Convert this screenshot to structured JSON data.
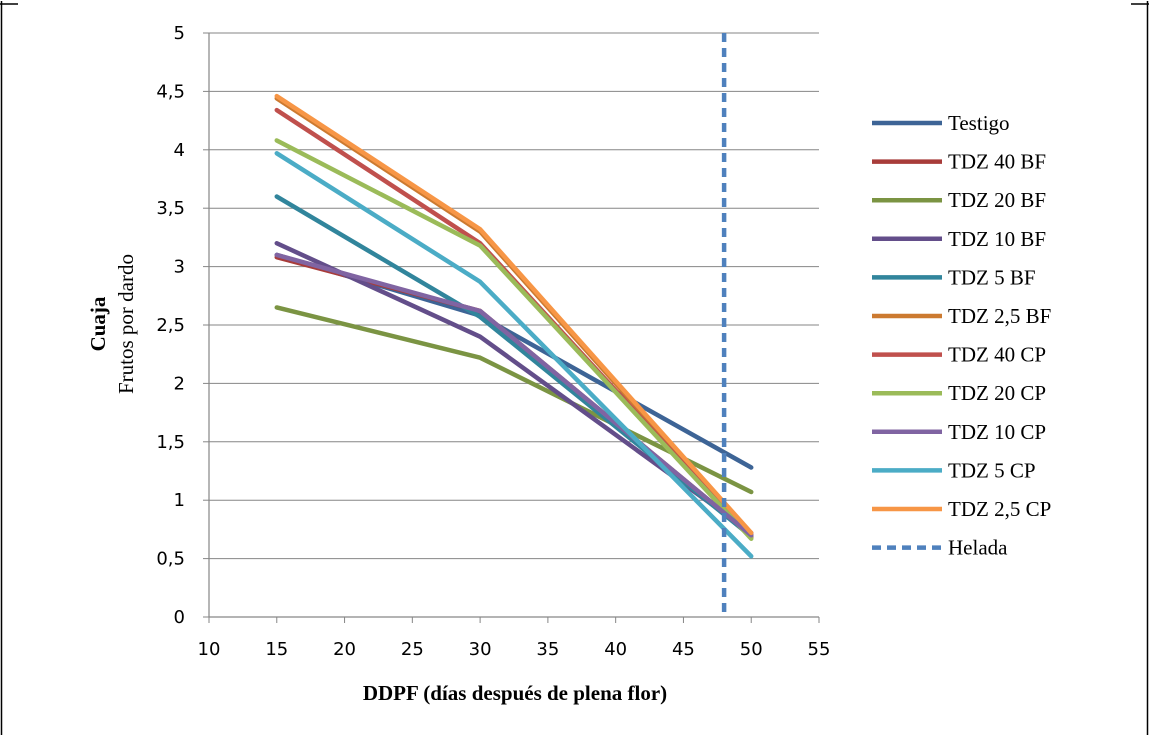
{
  "chart_data": {
    "type": "line",
    "title": "",
    "xlabel": "DDPF (días después de plena flor)",
    "ylabel_bold": "Cuaja",
    "ylabel": "Frutos por dardo",
    "xlim": [
      10,
      55
    ],
    "ylim": [
      0,
      5
    ],
    "x_ticks": [
      "10",
      "15",
      "20",
      "25",
      "30",
      "35",
      "40",
      "45",
      "50",
      "55"
    ],
    "y_ticks": [
      "0",
      "0,5",
      "1",
      "1,5",
      "2",
      "2,5",
      "3",
      "3,5",
      "4",
      "4,5",
      "5"
    ],
    "grid": "horizontal",
    "legend_position": "right",
    "x": [
      15,
      30,
      50
    ],
    "series": [
      {
        "name": "Testigo",
        "color": "#3d6496",
        "values": [
          3.1,
          2.58,
          1.28
        ]
      },
      {
        "name": "TDZ 40 BF",
        "color": "#a83c3a",
        "values": [
          3.08,
          2.62,
          0.7
        ]
      },
      {
        "name": "TDZ 20 BF",
        "color": "#7b9443",
        "values": [
          2.65,
          2.22,
          1.07
        ]
      },
      {
        "name": "TDZ 10 BF",
        "color": "#634e8a",
        "values": [
          3.2,
          2.4,
          0.72
        ]
      },
      {
        "name": "TDZ 5 BF",
        "color": "#31859c",
        "values": [
          3.6,
          2.57,
          0.69
        ]
      },
      {
        "name": "TDZ 2,5 BF",
        "color": "#cc7a30",
        "values": [
          4.44,
          3.3,
          0.7
        ]
      },
      {
        "name": "TDZ 40 CP",
        "color": "#c0504d",
        "values": [
          4.34,
          3.2,
          0.68
        ]
      },
      {
        "name": "TDZ 20 CP",
        "color": "#9bbb59",
        "values": [
          4.08,
          3.18,
          0.67
        ]
      },
      {
        "name": "TDZ 10 CP",
        "color": "#8064a2",
        "values": [
          3.1,
          2.62,
          0.7
        ]
      },
      {
        "name": "TDZ 5 CP",
        "color": "#4bacc6",
        "values": [
          3.97,
          2.87,
          0.52
        ]
      },
      {
        "name": "TDZ 2,5 CP",
        "color": "#f79646",
        "values": [
          4.46,
          3.32,
          0.72
        ]
      }
    ],
    "reference_line": {
      "name": "Helada",
      "x": 48,
      "color": "#4f81bd",
      "style": "dashed"
    }
  }
}
